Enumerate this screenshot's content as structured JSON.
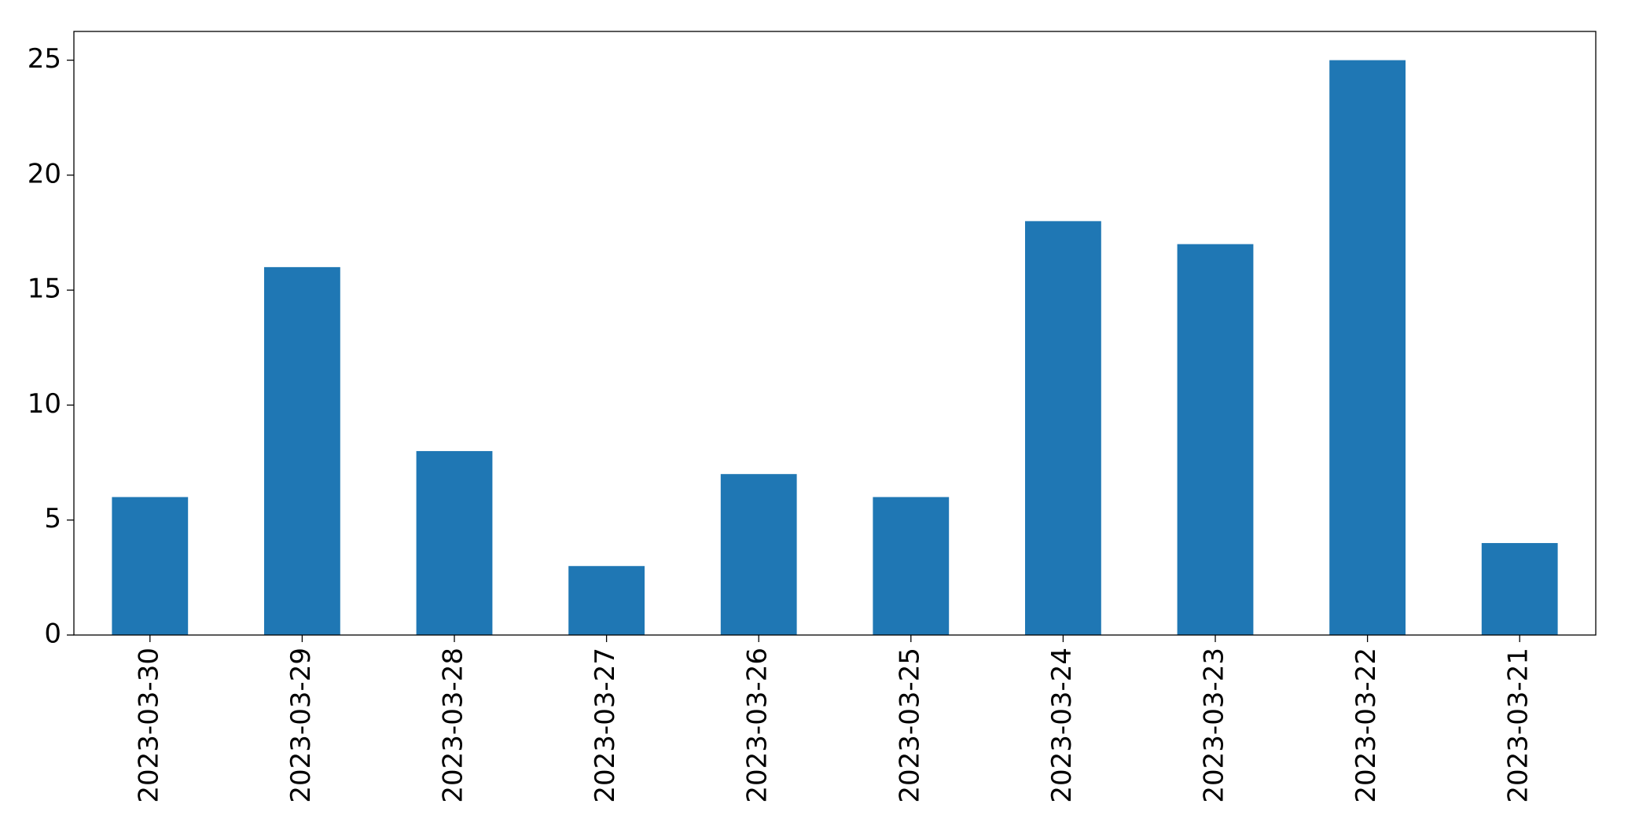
{
  "chart_data": {
    "type": "bar",
    "categories": [
      "2023-03-30",
      "2023-03-29",
      "2023-03-28",
      "2023-03-27",
      "2023-03-26",
      "2023-03-25",
      "2023-03-24",
      "2023-03-23",
      "2023-03-22",
      "2023-03-21"
    ],
    "values": [
      6,
      16,
      8,
      3,
      7,
      6,
      18,
      17,
      25,
      4
    ],
    "color": "#1f77b4",
    "ylim": [
      0,
      26.25
    ],
    "yticks": [
      0,
      5,
      10,
      15,
      20,
      25
    ],
    "grid": false
  }
}
